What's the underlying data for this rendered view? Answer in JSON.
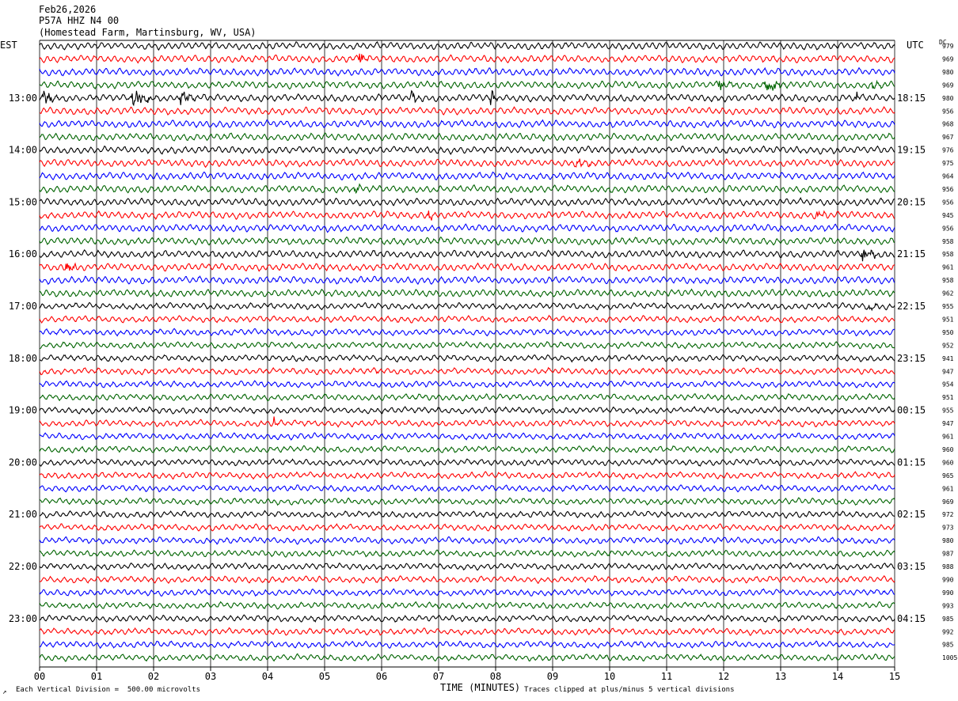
{
  "header": {
    "date": "Feb26,2026",
    "station": "P57A HHZ N4 00",
    "location": "(Homestead Farm, Martinsburg, WV, USA)"
  },
  "axes": {
    "left_label": "EST",
    "right_label": "UTC",
    "dc_label": "DC",
    "x_title": "TIME (MINUTES)"
  },
  "footer": {
    "scale_note": "Each Vertical Division =  500.00 microvolts",
    "clip_note": "Traces clipped at plus/minus 5 vertical divisions",
    "corner_mark": "↗"
  },
  "chart_data": {
    "type": "line",
    "title": "P57A HHZ N4 00",
    "xlabel": "TIME (MINUTES)",
    "xlim": [
      0,
      15
    ],
    "x_ticks": [
      "00",
      "01",
      "02",
      "03",
      "04",
      "05",
      "06",
      "07",
      "08",
      "09",
      "10",
      "11",
      "12",
      "13",
      "14",
      "15"
    ],
    "trace_minutes": 15,
    "trace_count": 48,
    "trace_colors": [
      "#000000",
      "#ff0000",
      "#0000ff",
      "#006400"
    ],
    "left_hour_labels": [
      {
        "trace": 4,
        "label": "13:00"
      },
      {
        "trace": 8,
        "label": "14:00"
      },
      {
        "trace": 12,
        "label": "15:00"
      },
      {
        "trace": 16,
        "label": "16:00"
      },
      {
        "trace": 20,
        "label": "17:00"
      },
      {
        "trace": 24,
        "label": "18:00"
      },
      {
        "trace": 28,
        "label": "19:00"
      },
      {
        "trace": 32,
        "label": "20:00"
      },
      {
        "trace": 36,
        "label": "21:00"
      },
      {
        "trace": 40,
        "label": "22:00"
      },
      {
        "trace": 44,
        "label": "23:00"
      }
    ],
    "right_hour_labels": [
      {
        "trace": 4,
        "label": "18:15"
      },
      {
        "trace": 8,
        "label": "19:15"
      },
      {
        "trace": 12,
        "label": "20:15"
      },
      {
        "trace": 16,
        "label": "21:15"
      },
      {
        "trace": 20,
        "label": "22:15"
      },
      {
        "trace": 24,
        "label": "23:15"
      },
      {
        "trace": 28,
        "label": "00:15"
      },
      {
        "trace": 32,
        "label": "01:15"
      },
      {
        "trace": 36,
        "label": "02:15"
      },
      {
        "trace": 40,
        "label": "03:15"
      },
      {
        "trace": 44,
        "label": "04:15"
      }
    ],
    "dc_offsets": [
      979,
      969,
      980,
      969,
      980,
      956,
      968,
      967,
      976,
      975,
      964,
      956,
      956,
      945,
      956,
      958,
      958,
      961,
      958,
      962,
      955,
      951,
      950,
      952,
      941,
      947,
      954,
      951,
      955,
      947,
      961,
      960,
      960,
      965,
      961,
      969,
      972,
      973,
      980,
      987,
      988,
      990,
      990,
      993,
      985,
      992,
      985,
      1005
    ],
    "events": [
      {
        "trace": 1,
        "minute": 5.6,
        "duration": 0.25,
        "amp": 1.6
      },
      {
        "trace": 3,
        "minute": 11.9,
        "duration": 0.4,
        "amp": 1.6
      },
      {
        "trace": 3,
        "minute": 12.7,
        "duration": 0.5,
        "amp": 2.2
      },
      {
        "trace": 3,
        "minute": 14.6,
        "duration": 0.3,
        "amp": 1.4
      },
      {
        "trace": 4,
        "minute": 0.05,
        "duration": 0.4,
        "amp": 2.0
      },
      {
        "trace": 4,
        "minute": 1.55,
        "duration": 0.55,
        "amp": 3.2
      },
      {
        "trace": 4,
        "minute": 2.45,
        "duration": 0.35,
        "amp": 2.0
      },
      {
        "trace": 4,
        "minute": 6.5,
        "duration": 0.3,
        "amp": 1.5
      },
      {
        "trace": 4,
        "minute": 7.9,
        "duration": 0.15,
        "amp": 3.5
      },
      {
        "trace": 4,
        "minute": 14.3,
        "duration": 0.15,
        "amp": 1.8
      },
      {
        "trace": 9,
        "minute": 9.4,
        "duration": 0.4,
        "amp": 1.3
      },
      {
        "trace": 11,
        "minute": 5.5,
        "duration": 0.2,
        "amp": 1.4
      },
      {
        "trace": 13,
        "minute": 6.8,
        "duration": 0.2,
        "amp": 1.8
      },
      {
        "trace": 13,
        "minute": 13.6,
        "duration": 0.25,
        "amp": 2.2
      },
      {
        "trace": 16,
        "minute": 14.4,
        "duration": 0.55,
        "amp": 1.8
      },
      {
        "trace": 17,
        "minute": 0.45,
        "duration": 0.3,
        "amp": 2.5
      },
      {
        "trace": 20,
        "minute": 14.5,
        "duration": 0.3,
        "amp": 1.5
      },
      {
        "trace": 25,
        "minute": 5.9,
        "duration": 0.1,
        "amp": 1.5
      },
      {
        "trace": 29,
        "minute": 4.1,
        "duration": 0.12,
        "amp": 1.8
      }
    ]
  }
}
